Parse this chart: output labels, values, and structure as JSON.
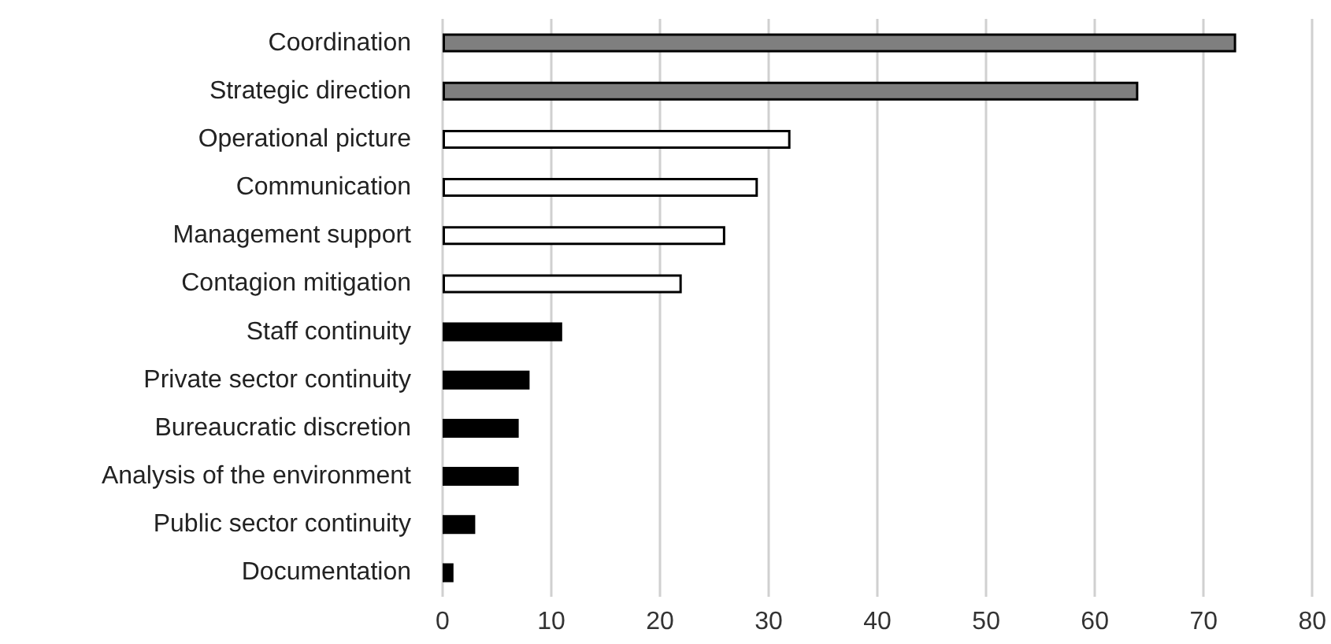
{
  "chart_data": {
    "type": "bar",
    "orientation": "horizontal",
    "categories": [
      "Coordination",
      "Strategic direction",
      "Operational picture",
      "Communication",
      "Management support",
      "Contagion mitigation",
      "Staff continuity",
      "Private sector continuity",
      "Bureaucratic discretion",
      "Analysis of the environment",
      "Public sector continuity",
      "Documentation"
    ],
    "values": [
      73,
      64,
      32,
      29,
      26,
      22,
      11,
      8,
      7,
      7,
      3,
      1
    ],
    "colors": [
      "#7f7f7f",
      "#7f7f7f",
      "#ffffff",
      "#ffffff",
      "#ffffff",
      "#ffffff",
      "#000000",
      "#000000",
      "#000000",
      "#000000",
      "#000000",
      "#000000"
    ],
    "xlim": [
      0,
      80
    ],
    "xticks": [
      0,
      10,
      20,
      30,
      40,
      50,
      60,
      70,
      80
    ],
    "grid": "x"
  }
}
